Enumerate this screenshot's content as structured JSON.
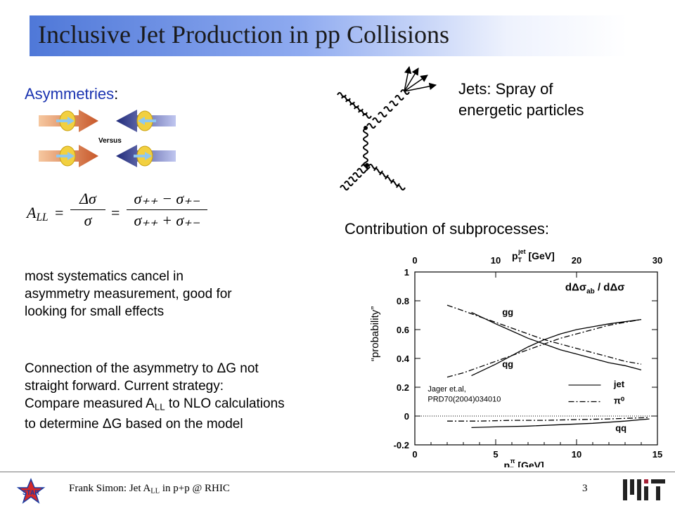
{
  "title": "Inclusive Jet Production in pp Collisions",
  "asym_label": "Asymmetries",
  "asym_colon": ":",
  "versus_label": "Versus",
  "jets_label_line1": "Jets: Spray of",
  "jets_label_line2": "energetic particles",
  "contrib_label": "Contribution of subprocesses:",
  "formula": {
    "lhs": "A",
    "lhs_sub": "LL",
    "num1": "Δσ",
    "den1": "σ",
    "num2": "σ₊₊ − σ₊₋",
    "den2": "σ₊₊ + σ₊₋"
  },
  "text1_lines": [
    "most systematics cancel in",
    "asymmetry measurement, good for",
    "looking for small effects"
  ],
  "text2": {
    "line1a": "Connection of the asymmetry to ",
    "line1b": "G not",
    "line2": "straight forward. Current strategy:",
    "line3a": "Compare measured A",
    "line3sub": "LL",
    "line3b": " to NLO calculations",
    "line4a": "to determine ",
    "line4b": "G based on the model",
    "delta": "Δ"
  },
  "footer": {
    "pre": "Frank Simon: Jet A",
    "sub": "LL",
    "post": " in p+p @ RHIC",
    "page": "3"
  },
  "logo_star": "STAR",
  "chart_data": {
    "type": "line",
    "ylabel": "“probability”",
    "right_label": "dΔσ_ab / dΔσ",
    "top_axis": {
      "label": "p_T^jet [GeV]",
      "ticks": [
        0,
        10,
        20,
        30
      ],
      "range": [
        0,
        30
      ]
    },
    "bottom_axis": {
      "label": "p_T^π [GeV]",
      "ticks": [
        0,
        5,
        10,
        15
      ],
      "range": [
        0,
        15
      ]
    },
    "ylim": [
      -0.2,
      1.0
    ],
    "yticks": [
      -0.2,
      0,
      0.2,
      0.4,
      0.6,
      0.8,
      1
    ],
    "ytick_labels": [
      "-0.2",
      "0",
      "0.2",
      "0.4",
      "0.6",
      "0.8",
      "1"
    ],
    "annotation": [
      "Jager et.al,",
      "PRD70(2004)034010"
    ],
    "legend": [
      {
        "label": "jet",
        "style": "solid"
      },
      {
        "label": "π⁰",
        "style": "dashdot"
      }
    ],
    "curve_labels": [
      "gg",
      "qg",
      "qq"
    ],
    "series": [
      {
        "name": "gg jet",
        "style": "solid",
        "x": [
          3.5,
          5,
          6,
          7,
          8,
          9,
          10,
          11,
          12,
          13,
          14
        ],
        "values": [
          0.72,
          0.64,
          0.59,
          0.54,
          0.5,
          0.46,
          0.43,
          0.4,
          0.37,
          0.35,
          0.32
        ]
      },
      {
        "name": "gg π0",
        "style": "dashdot",
        "x": [
          2,
          3,
          4,
          5,
          6,
          7,
          8,
          9,
          10,
          11,
          12,
          13,
          14
        ],
        "values": [
          0.77,
          0.73,
          0.69,
          0.65,
          0.61,
          0.57,
          0.53,
          0.5,
          0.47,
          0.44,
          0.41,
          0.38,
          0.36
        ]
      },
      {
        "name": "qg jet",
        "style": "solid",
        "x": [
          3.5,
          5,
          6,
          7,
          8,
          9,
          10,
          11,
          12,
          13,
          14
        ],
        "values": [
          0.28,
          0.36,
          0.42,
          0.48,
          0.53,
          0.57,
          0.6,
          0.62,
          0.64,
          0.655,
          0.67
        ]
      },
      {
        "name": "qg π0",
        "style": "dashdot",
        "x": [
          2,
          3,
          4,
          5,
          6,
          7,
          8,
          9,
          10,
          11,
          12,
          13,
          14
        ],
        "values": [
          0.27,
          0.3,
          0.34,
          0.38,
          0.42,
          0.46,
          0.5,
          0.54,
          0.57,
          0.6,
          0.63,
          0.65,
          0.67
        ]
      },
      {
        "name": "qq jet",
        "style": "solid",
        "x": [
          3.5,
          5,
          7,
          9,
          11,
          13,
          14.5
        ],
        "values": [
          -0.08,
          -0.075,
          -0.07,
          -0.06,
          -0.05,
          -0.035,
          -0.02
        ]
      },
      {
        "name": "qq π0",
        "style": "dashdot",
        "x": [
          2,
          4,
          6,
          8,
          10,
          12,
          14.5
        ],
        "values": [
          -0.035,
          -0.035,
          -0.03,
          -0.03,
          -0.025,
          -0.02,
          -0.01
        ]
      }
    ]
  }
}
